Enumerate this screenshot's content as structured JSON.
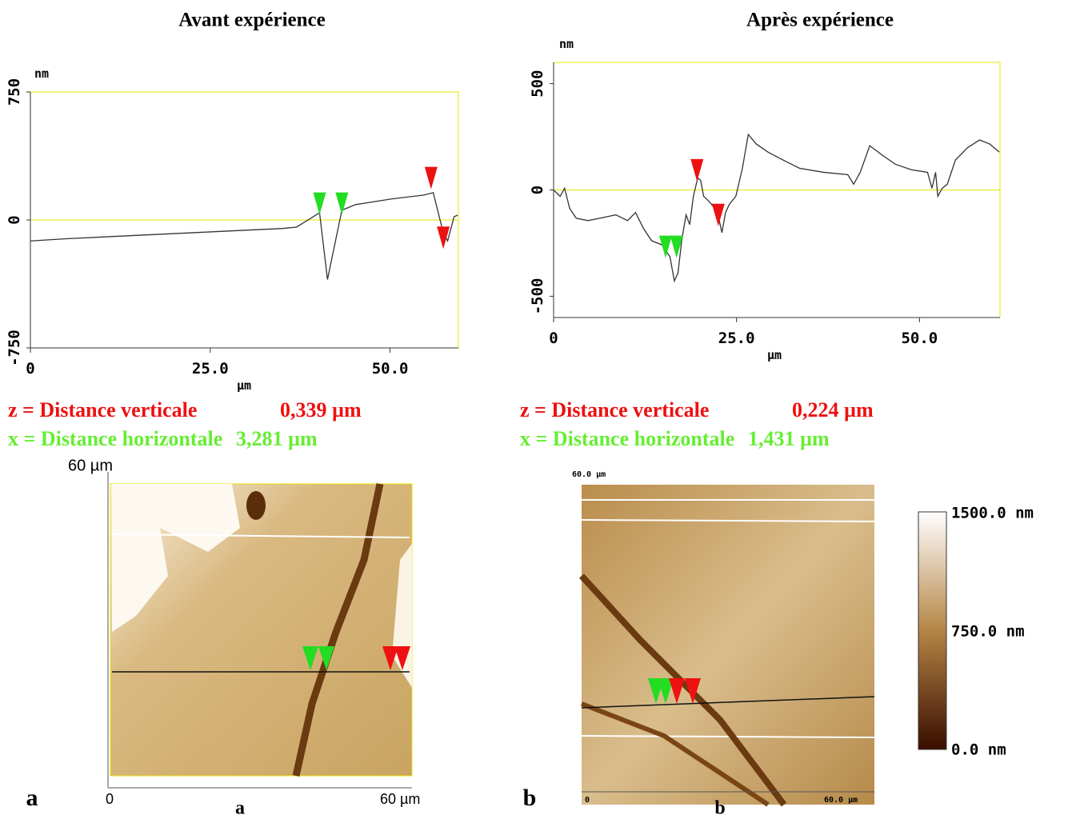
{
  "chart_data": [
    {
      "type": "line",
      "title": "Avant expérience",
      "ylabel": "nm",
      "xlabel": "µm",
      "x": [
        0,
        5,
        10,
        15,
        20,
        25,
        30,
        35,
        37,
        40.2,
        41.3,
        43.3,
        45.2,
        50.2,
        54.7,
        56,
        57.4,
        58,
        58.9,
        59.4
      ],
      "series": [
        {
          "color": "#333333",
          "values": [
            -123,
            -110,
            -100,
            -90,
            -80,
            -70,
            -60,
            -50,
            -42,
            42,
            -349,
            57,
            90,
            123,
            146,
            160,
            -75,
            -123,
            19,
            28
          ]
        }
      ],
      "markers": [
        {
          "x": 40.2,
          "y": 30,
          "color": "#22dd22"
        },
        {
          "x": 43.3,
          "y": 30,
          "color": "#22dd22"
        },
        {
          "x": 55.7,
          "y": 180,
          "color": "#ee1111"
        },
        {
          "x": 57.4,
          "y": -170,
          "color": "#ee1111"
        }
      ],
      "xlim": [
        0,
        59.5
      ],
      "ylim": [
        -750,
        750
      ],
      "xticks": [
        0,
        {
          "value": 25,
          "label": "25.0"
        },
        {
          "value": 50,
          "label": "50.0"
        }
      ],
      "yticks": [
        -750,
        0,
        750
      ],
      "zero_line": true,
      "frame_color": "#e6e600"
    },
    {
      "type": "line",
      "title": "Après expérience",
      "ylabel": "nm",
      "xlabel": "µm",
      "x": [
        0,
        0.9,
        1.5,
        2.2,
        3.1,
        4.7,
        6.3,
        8.5,
        10.1,
        11.2,
        12.3,
        13.4,
        14.8,
        15.9,
        16.5,
        17.0,
        17.5,
        18.1,
        18.6,
        19.1,
        19.7,
        20.1,
        20.5,
        21.1,
        21.6,
        22.4,
        23.0,
        23.5,
        24.0,
        24.9,
        25.8,
        26.6,
        27.7,
        29.3,
        31.4,
        33.6,
        36.9,
        40.2,
        41.0,
        41.9,
        43.2,
        45.1,
        46.7,
        48.9,
        51.1,
        51.7,
        52.2,
        52.5,
        53.1,
        53.8,
        54.9,
        56.5,
        58.2,
        59.6,
        60.9
      ],
      "series": [
        {
          "color": "#333333",
          "values": [
            0,
            -30,
            8,
            -87,
            -133,
            -144,
            -133,
            -117,
            -144,
            -106,
            -182,
            -239,
            -258,
            -314,
            -428,
            -390,
            -239,
            -117,
            -163,
            -30,
            57,
            45,
            -30,
            -49,
            -68,
            -106,
            -201,
            -106,
            -68,
            -30,
            102,
            261,
            216,
            178,
            140,
            102,
            83,
            72,
            27,
            83,
            208,
            159,
            121,
            95,
            83,
            8,
            83,
            -30,
            8,
            27,
            140,
            197,
            235,
            216,
            178
          ]
        }
      ],
      "markers": [
        {
          "x": 15.3,
          "y": -320,
          "color": "#22dd22"
        },
        {
          "x": 16.8,
          "y": -320,
          "color": "#22dd22"
        },
        {
          "x": 19.6,
          "y": 40,
          "color": "#ee1111"
        },
        {
          "x": 22.5,
          "y": -170,
          "color": "#ee1111"
        }
      ],
      "xlim": [
        0,
        61
      ],
      "ylim": [
        -600,
        600
      ],
      "xticks": [
        0,
        {
          "value": 25,
          "label": "25.0"
        },
        {
          "value": 50,
          "label": "50.0"
        }
      ],
      "yticks": [
        -500,
        0,
        500
      ],
      "zero_line": true,
      "frame_color": "#e6e600"
    }
  ],
  "measurements": [
    {
      "z_label": "z = Distance verticale",
      "z_value": "0,339 µm",
      "x_label": "x = Distance horizontale",
      "x_value": "3,281 µm"
    },
    {
      "z_label": "z = Distance verticale",
      "z_value": "0,224 µm",
      "x_label": "x = Distance horizontale",
      "x_value": "1,431 µm"
    }
  ],
  "images": [
    {
      "scale_top": "60 µm",
      "axis_start": "0",
      "axis_end": "60 µm",
      "panel": "a",
      "caption": "a"
    },
    {
      "scale_top": "60.0 µm",
      "axis_start": "0",
      "axis_end": "60.0 µm",
      "panel": "b",
      "caption": "b"
    }
  ],
  "colorbar": {
    "top": "1500.0 nm",
    "middle": "750.0 nm",
    "bottom": "0.0 nm"
  }
}
